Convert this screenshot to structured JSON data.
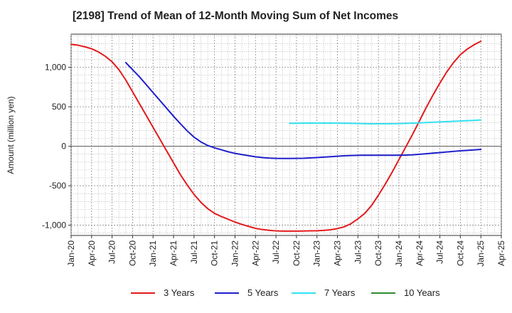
{
  "chart_data": {
    "type": "line",
    "title": "[2198]  Trend of Mean of 12-Month Moving Sum of Net Incomes",
    "xlabel": "",
    "ylabel": "Amount (million yen)",
    "x_ticks": [
      "Jan-20",
      "Apr-20",
      "Jul-20",
      "Oct-20",
      "Jan-21",
      "Apr-21",
      "Jul-21",
      "Oct-21",
      "Jan-22",
      "Apr-22",
      "Jul-22",
      "Oct-22",
      "Jan-23",
      "Apr-23",
      "Jul-23",
      "Oct-23",
      "Jan-24",
      "Apr-24",
      "Jul-24",
      "Oct-24",
      "Jan-25",
      "Apr-25"
    ],
    "y_ticks": [
      -1000,
      -500,
      0,
      500,
      1000
    ],
    "y_tick_labels": [
      "-1,000",
      "-500",
      "0",
      "500",
      "1,000"
    ],
    "ylim": [
      -1130,
      1420
    ],
    "grid": true,
    "legend_position": "bottom",
    "series": [
      {
        "name": "3 Years",
        "color": "#e31a1c",
        "x": [
          "2020-01",
          "2020-02",
          "2020-03",
          "2020-04",
          "2020-05",
          "2020-06",
          "2020-07",
          "2020-08",
          "2020-09",
          "2020-10",
          "2020-11",
          "2020-12",
          "2021-01",
          "2021-02",
          "2021-03",
          "2021-04",
          "2021-05",
          "2021-06",
          "2021-07",
          "2021-08",
          "2021-09",
          "2021-10",
          "2021-11",
          "2021-12",
          "2022-01",
          "2022-02",
          "2022-03",
          "2022-04",
          "2022-05",
          "2022-06",
          "2022-07",
          "2022-08",
          "2022-09",
          "2022-10",
          "2022-11",
          "2022-12",
          "2023-01",
          "2023-02",
          "2023-03",
          "2023-04",
          "2023-05",
          "2023-06",
          "2023-07",
          "2023-08",
          "2023-09",
          "2023-10",
          "2023-11",
          "2023-12",
          "2024-01",
          "2024-02",
          "2024-03",
          "2024-04",
          "2024-05",
          "2024-06",
          "2024-07",
          "2024-08",
          "2024-09",
          "2024-10",
          "2024-11",
          "2024-12",
          "2025-01"
        ],
        "values": [
          1290,
          1280,
          1260,
          1235,
          1195,
          1140,
          1070,
          970,
          840,
          690,
          540,
          390,
          240,
          90,
          -60,
          -210,
          -360,
          -490,
          -610,
          -710,
          -790,
          -850,
          -890,
          -925,
          -960,
          -990,
          -1015,
          -1040,
          -1055,
          -1065,
          -1072,
          -1075,
          -1075,
          -1075,
          -1074,
          -1072,
          -1070,
          -1066,
          -1058,
          -1043,
          -1020,
          -980,
          -920,
          -850,
          -750,
          -620,
          -480,
          -330,
          -170,
          -10,
          150,
          320,
          490,
          650,
          800,
          940,
          1060,
          1160,
          1230,
          1285,
          1330
        ]
      },
      {
        "name": "5 Years",
        "color": "#1f1fcc",
        "x": [
          "2020-09",
          "2020-10",
          "2020-11",
          "2020-12",
          "2021-01",
          "2021-02",
          "2021-03",
          "2021-04",
          "2021-05",
          "2021-06",
          "2021-07",
          "2021-08",
          "2021-09",
          "2021-10",
          "2021-11",
          "2021-12",
          "2022-01",
          "2022-02",
          "2022-03",
          "2022-04",
          "2022-05",
          "2022-06",
          "2022-07",
          "2022-08",
          "2022-09",
          "2022-10",
          "2022-11",
          "2022-12",
          "2023-01",
          "2023-02",
          "2023-03",
          "2023-04",
          "2023-05",
          "2023-06",
          "2023-07",
          "2023-08",
          "2023-09",
          "2023-10",
          "2023-11",
          "2023-12",
          "2024-01",
          "2024-02",
          "2024-03",
          "2024-04",
          "2024-05",
          "2024-06",
          "2024-07",
          "2024-08",
          "2024-09",
          "2024-10",
          "2024-11",
          "2024-12",
          "2025-01"
        ],
        "values": [
          1060,
          970,
          880,
          780,
          680,
          580,
          480,
          380,
          285,
          195,
          115,
          55,
          10,
          -20,
          -45,
          -70,
          -90,
          -105,
          -120,
          -133,
          -143,
          -150,
          -154,
          -155,
          -155,
          -154,
          -152,
          -148,
          -143,
          -138,
          -132,
          -126,
          -121,
          -117,
          -115,
          -114,
          -114,
          -114,
          -114,
          -114,
          -114,
          -112,
          -108,
          -102,
          -95,
          -87,
          -80,
          -72,
          -65,
          -58,
          -52,
          -46,
          -40
        ]
      },
      {
        "name": "7 Years",
        "color": "#33e0f0",
        "x": [
          "2022-09",
          "2022-10",
          "2022-11",
          "2022-12",
          "2023-01",
          "2023-02",
          "2023-03",
          "2023-04",
          "2023-05",
          "2023-06",
          "2023-07",
          "2023-08",
          "2023-09",
          "2023-10",
          "2023-11",
          "2023-12",
          "2024-01",
          "2024-02",
          "2024-03",
          "2024-04",
          "2024-05",
          "2024-06",
          "2024-07",
          "2024-08",
          "2024-09",
          "2024-10",
          "2024-11",
          "2024-12",
          "2025-01"
        ],
        "values": [
          290,
          292,
          293,
          294,
          294,
          294,
          294,
          293,
          292,
          290,
          288,
          286,
          285,
          285,
          285,
          286,
          287,
          290,
          293,
          296,
          300,
          304,
          308,
          312,
          316,
          320,
          324,
          328,
          333
        ]
      },
      {
        "name": "10 Years",
        "color": "#2e8b2e",
        "x": [],
        "values": []
      }
    ]
  }
}
